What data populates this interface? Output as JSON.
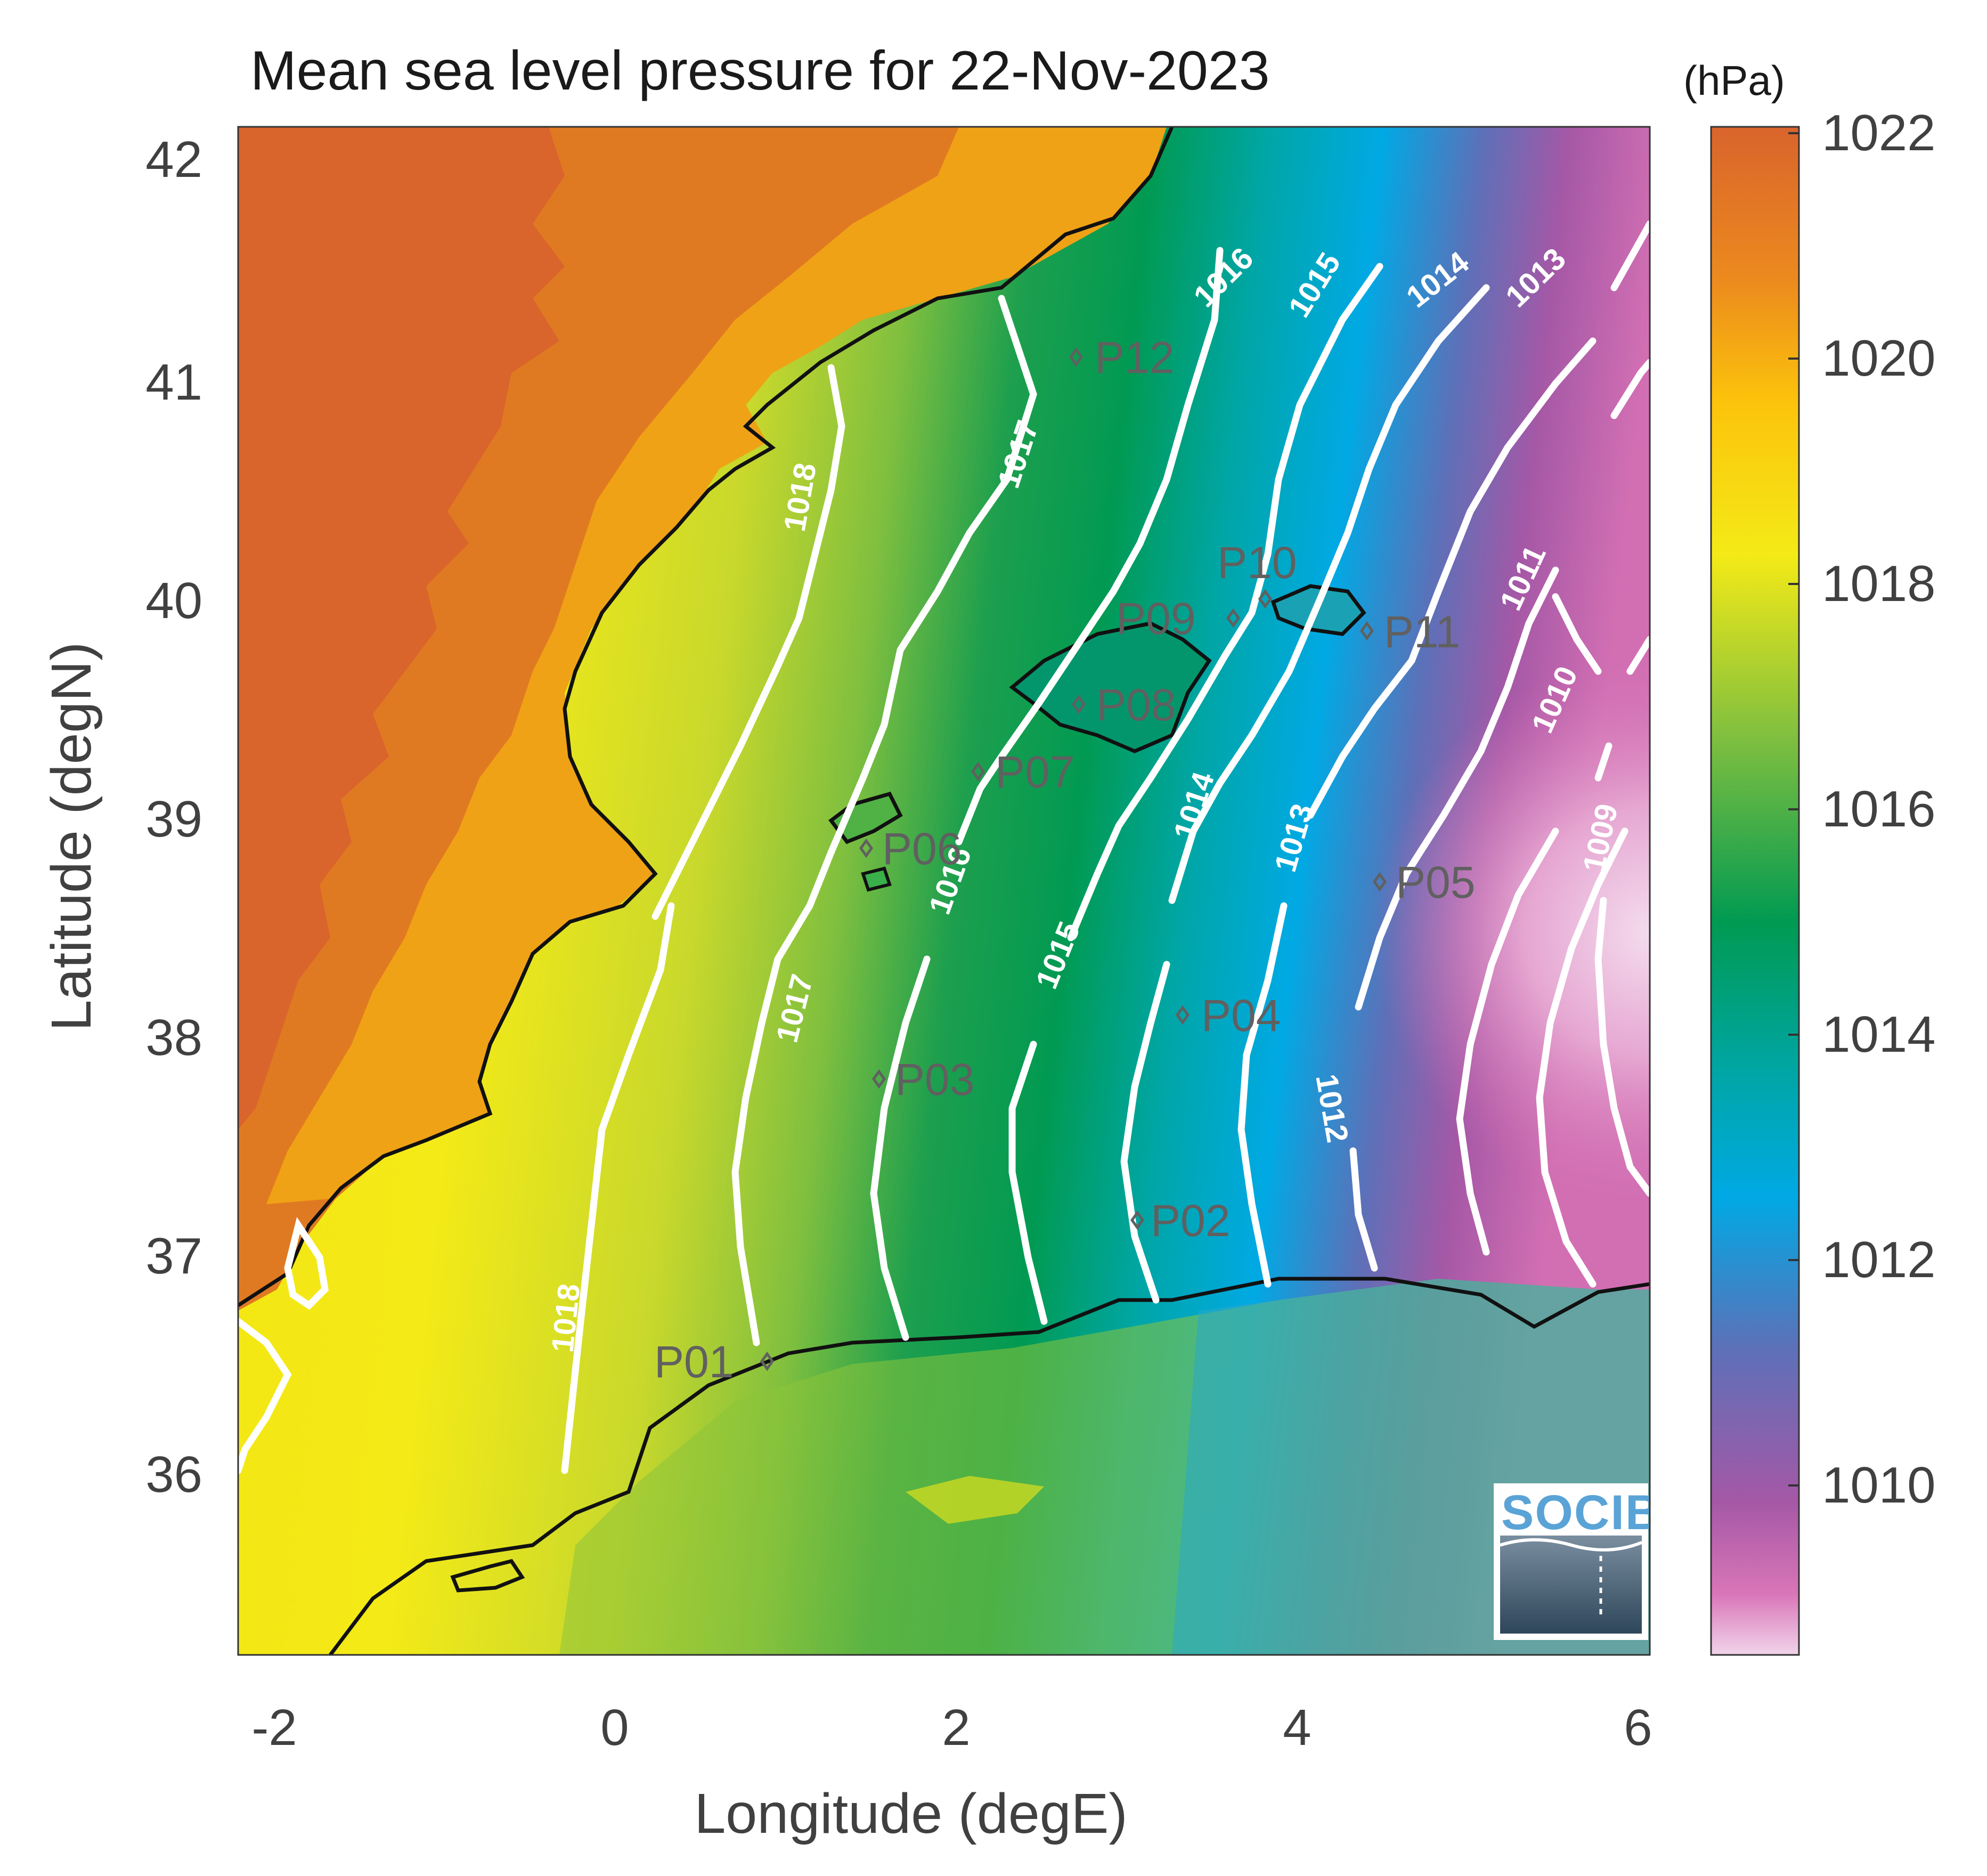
{
  "title": "Mean sea level pressure for 22-Nov-2023",
  "xlabel": "Longitude (degE)",
  "ylabel": "Latitude (degN)",
  "xticks": [
    "-2",
    "0",
    "2",
    "4",
    "6"
  ],
  "yticks": [
    "42",
    "41",
    "40",
    "39",
    "38",
    "37",
    "36"
  ],
  "colorbar": {
    "unit": "(hPa)",
    "ticks": [
      "1022",
      "1020",
      "1018",
      "1016",
      "1014",
      "1012",
      "1010"
    ]
  },
  "contour_labels": [
    "1018",
    "1017",
    "1016",
    "1015",
    "1014",
    "1013",
    "1012",
    "1011",
    "1010",
    "1009"
  ],
  "stations": [
    "P01",
    "P02",
    "P03",
    "P04",
    "P05",
    "P06",
    "P07",
    "P08",
    "P09",
    "P10",
    "P11",
    "P12"
  ],
  "logo": "SOCIB",
  "chart_data": {
    "type": "heatmap",
    "title": "Mean sea level pressure for 22-Nov-2023",
    "xlabel": "Longitude (degE)",
    "ylabel": "Latitude (degN)",
    "xlim": [
      -2.2,
      6.0
    ],
    "ylim": [
      35.2,
      42.2
    ],
    "colorbar_range": [
      1008.5,
      1022
    ],
    "contour_levels": [
      1009,
      1010,
      1011,
      1012,
      1013,
      1014,
      1015,
      1016,
      1017,
      1018
    ],
    "stations": [
      {
        "name": "P01",
        "lon": 0.85,
        "lat": 36.5
      },
      {
        "name": "P02",
        "lon": 3.0,
        "lat": 37.15
      },
      {
        "name": "P03",
        "lon": 1.52,
        "lat": 37.8
      },
      {
        "name": "P04",
        "lon": 3.3,
        "lat": 38.1
      },
      {
        "name": "P05",
        "lon": 4.45,
        "lat": 38.7
      },
      {
        "name": "P06",
        "lon": 1.45,
        "lat": 38.85
      },
      {
        "name": "P07",
        "lon": 2.12,
        "lat": 39.2
      },
      {
        "name": "P08",
        "lon": 2.72,
        "lat": 39.5
      },
      {
        "name": "P09",
        "lon": 3.6,
        "lat": 39.9
      },
      {
        "name": "P10",
        "lon": 3.8,
        "lat": 40.0
      },
      {
        "name": "P11",
        "lon": 4.4,
        "lat": 39.85
      },
      {
        "name": "P12",
        "lon": 2.7,
        "lat": 41.1
      }
    ]
  }
}
